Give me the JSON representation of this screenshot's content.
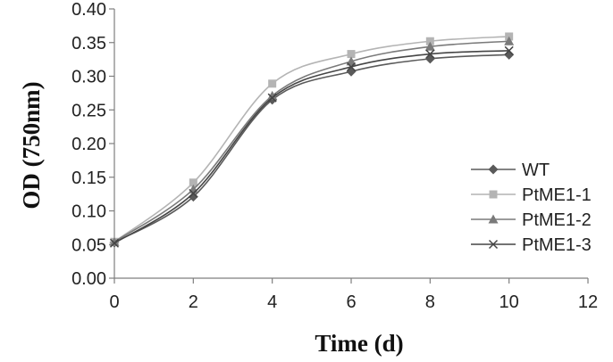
{
  "chart_data": {
    "type": "line",
    "xlabel": "Time (d)",
    "ylabel": "OD (750nm)",
    "xlim": [
      0,
      12
    ],
    "ylim": [
      0,
      0.4
    ],
    "xticks": [
      "0",
      "2",
      "4",
      "6",
      "8",
      "10",
      "12"
    ],
    "yticks": [
      "0.00",
      "0.05",
      "0.10",
      "0.15",
      "0.20",
      "0.25",
      "0.30",
      "0.35",
      "0.40"
    ],
    "grid": false,
    "legend_position": "right",
    "x": [
      0,
      2,
      4,
      6,
      8,
      10
    ],
    "series": [
      {
        "name": "WT",
        "marker": "diamond",
        "color": "#5a5a5a",
        "values": [
          0.053,
          0.121,
          0.265,
          0.307,
          0.326,
          0.332
        ]
      },
      {
        "name": "PtME1-1",
        "marker": "square",
        "color": "#b4b4b4",
        "values": [
          0.054,
          0.142,
          0.289,
          0.333,
          0.352,
          0.359
        ]
      },
      {
        "name": "PtME1-2",
        "marker": "triangle",
        "color": "#7a7a7a",
        "values": [
          0.054,
          0.132,
          0.271,
          0.322,
          0.344,
          0.352
        ]
      },
      {
        "name": "PtME1-3",
        "marker": "x",
        "color": "#454545",
        "values": [
          0.052,
          0.126,
          0.268,
          0.314,
          0.333,
          0.338
        ]
      }
    ]
  }
}
